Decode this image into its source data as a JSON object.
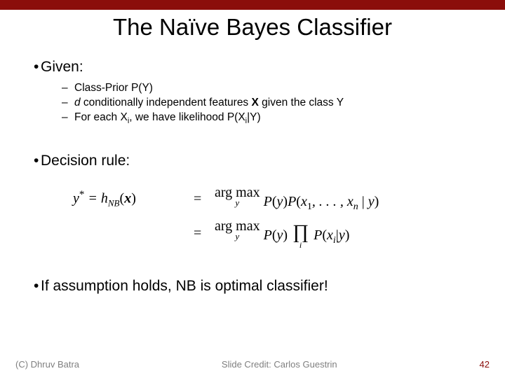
{
  "colors": {
    "top_bar": "#8b0e0b",
    "background": "#ffffff",
    "footer_text": "#7f7f7f",
    "page_number": "#8b0e0b"
  },
  "slide": {
    "title": "The Naïve Bayes Classifier"
  },
  "bullets": {
    "given": "Given:",
    "decision_rule": "Decision rule:",
    "conclusion": "If assumption holds, NB is optimal classifier!"
  },
  "sub_items": {
    "item1_prefix": "Class-Prior ",
    "item1_formula": "P(Y)",
    "item2_d": "d",
    "item2_mid": " conditionally independent features ",
    "item2_x": "X",
    "item2_suffix": " given the class Y",
    "item3_prefix": "For each X",
    "item3_sub": "i",
    "item3_mid": ", we have likelihood P(X",
    "item3_sub2": "i",
    "item3_suffix": "|Y)"
  },
  "formula": {
    "lhs_y": "y",
    "lhs_star": "*",
    "lhs_eq1": " = ",
    "lhs_h": "h",
    "lhs_nb": "NB",
    "lhs_x": "x",
    "argmax": "arg max",
    "argmax_sub": "y",
    "line1_rhs": "P(y)P(x₁, . . . , xₙ | y)",
    "line2_py": "P(y)",
    "line2_pxi": "P(xᵢ|y)",
    "prod_sub": "i"
  },
  "footer": {
    "left": "(C) Dhruv Batra",
    "center": "Slide Credit: Carlos Guestrin",
    "page": "42"
  }
}
